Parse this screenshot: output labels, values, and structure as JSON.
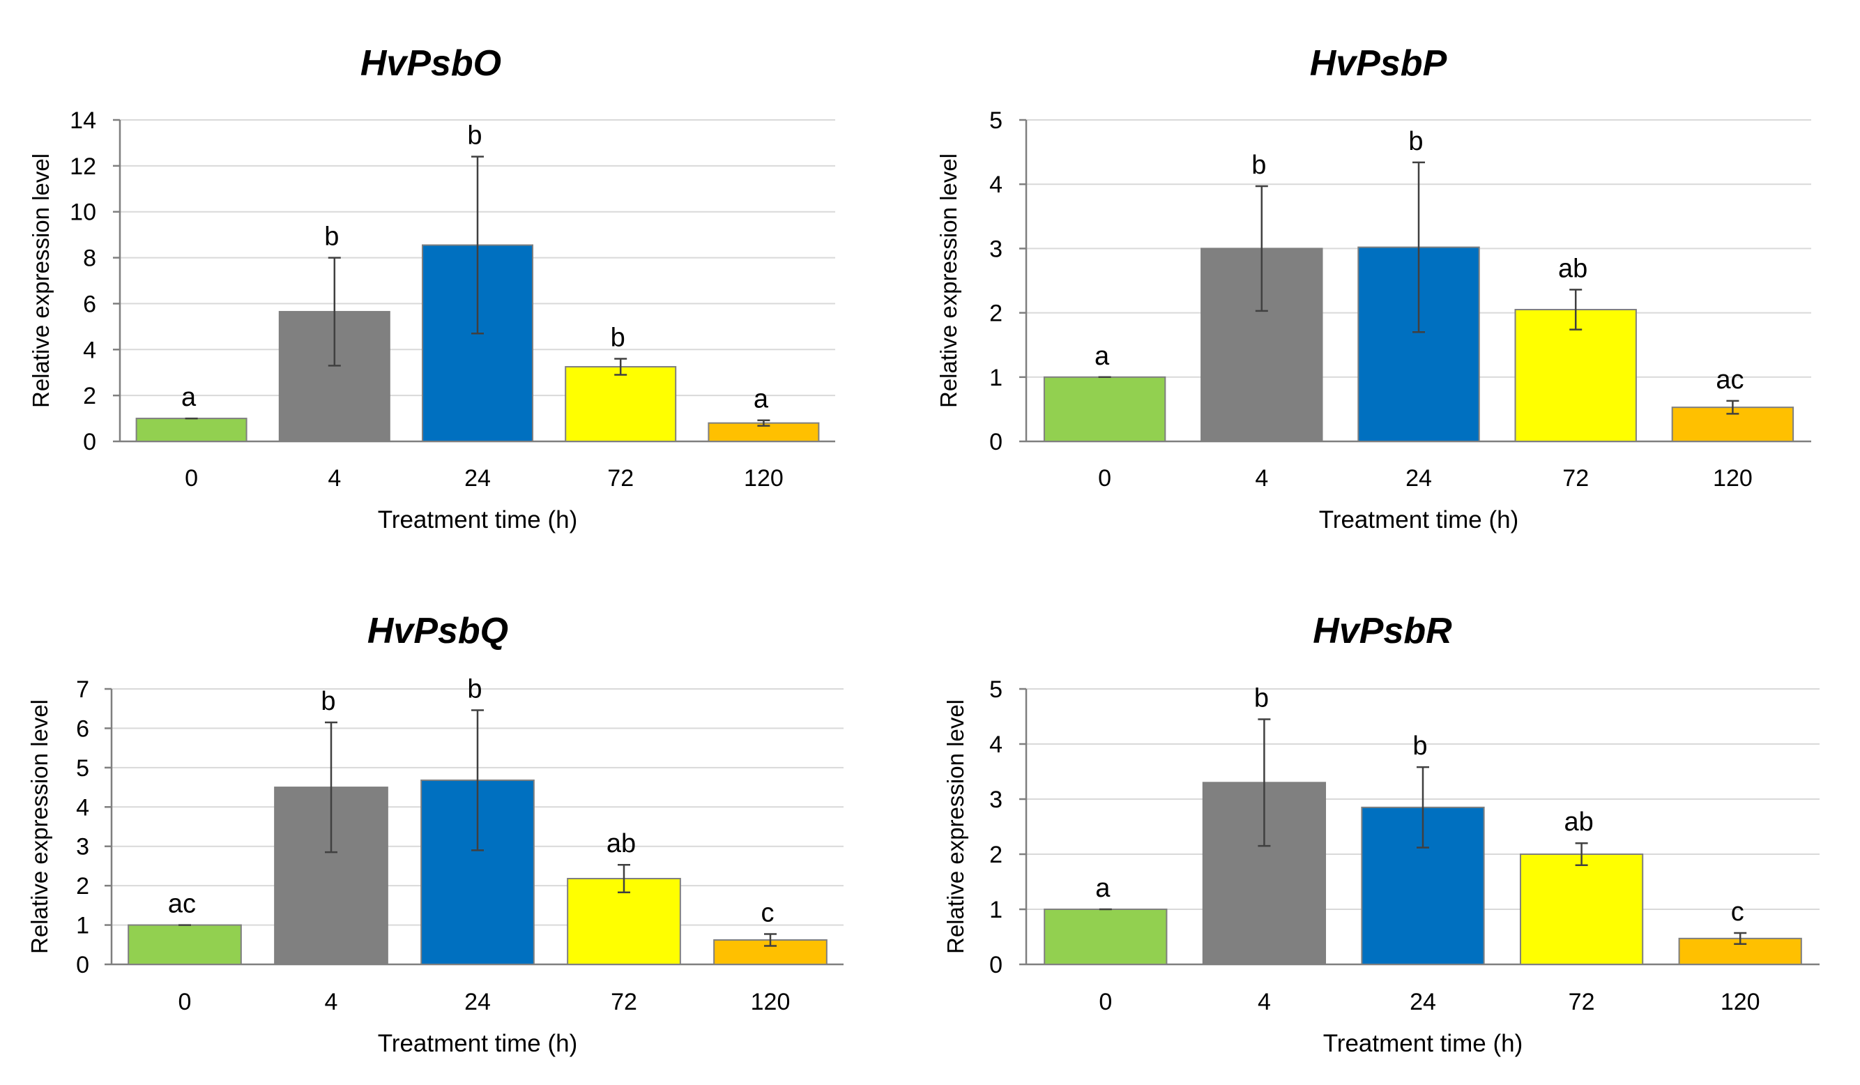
{
  "chart_data": [
    {
      "type": "bar",
      "title": "HvPsbO",
      "xlabel": "Treatment time (h)",
      "ylabel": "Relative expression level",
      "ylim": [
        0,
        14
      ],
      "yticks": [
        0,
        2,
        4,
        6,
        8,
        10,
        12,
        14
      ],
      "grid": true,
      "categories": [
        "0",
        "4",
        "24",
        "72",
        "120"
      ],
      "values": [
        1.0,
        5.65,
        8.55,
        3.25,
        0.8
      ],
      "errors": [
        0.0,
        2.35,
        3.85,
        0.35,
        0.12
      ],
      "letters": [
        "a",
        "b",
        "b",
        "b",
        "a"
      ],
      "colors": [
        "#92d050",
        "#808080",
        "#0070c0",
        "#ffff00",
        "#ffc000"
      ]
    },
    {
      "type": "bar",
      "title": "HvPsbP",
      "xlabel": "Treatment time (h)",
      "ylabel": "Relative expression level",
      "ylim": [
        0,
        5
      ],
      "yticks": [
        0,
        1,
        2,
        3,
        4,
        5
      ],
      "grid": true,
      "categories": [
        "0",
        "4",
        "24",
        "72",
        "120"
      ],
      "values": [
        1.0,
        3.0,
        3.02,
        2.05,
        0.53
      ],
      "errors": [
        0.0,
        0.97,
        1.32,
        0.31,
        0.1
      ],
      "letters": [
        "a",
        "b",
        "b",
        "ab",
        "ac"
      ],
      "colors": [
        "#92d050",
        "#808080",
        "#0070c0",
        "#ffff00",
        "#ffc000"
      ]
    },
    {
      "type": "bar",
      "title": "HvPsbQ",
      "xlabel": "Treatment time (h)",
      "ylabel": "Relative expression level",
      "ylim": [
        0,
        7
      ],
      "yticks": [
        0,
        1,
        2,
        3,
        4,
        5,
        6,
        7
      ],
      "grid": true,
      "categories": [
        "0",
        "4",
        "24",
        "72",
        "120"
      ],
      "values": [
        1.0,
        4.5,
        4.68,
        2.18,
        0.62
      ],
      "errors": [
        0.0,
        1.65,
        1.78,
        0.35,
        0.15
      ],
      "letters": [
        "ac",
        "b",
        "b",
        "ab",
        "c"
      ],
      "colors": [
        "#92d050",
        "#808080",
        "#0070c0",
        "#ffff00",
        "#ffc000"
      ]
    },
    {
      "type": "bar",
      "title": "HvPsbR",
      "xlabel": "Treatment time (h)",
      "ylabel": "Relative expression level",
      "ylim": [
        0,
        5
      ],
      "yticks": [
        0,
        1,
        2,
        3,
        4,
        5
      ],
      "grid": true,
      "categories": [
        "0",
        "4",
        "24",
        "72",
        "120"
      ],
      "values": [
        1.0,
        3.3,
        2.85,
        2.0,
        0.47
      ],
      "errors": [
        0.0,
        1.15,
        0.73,
        0.2,
        0.1
      ],
      "letters": [
        "a",
        "b",
        "b",
        "ab",
        "c"
      ],
      "colors": [
        "#92d050",
        "#808080",
        "#0070c0",
        "#ffff00",
        "#ffc000"
      ]
    }
  ]
}
